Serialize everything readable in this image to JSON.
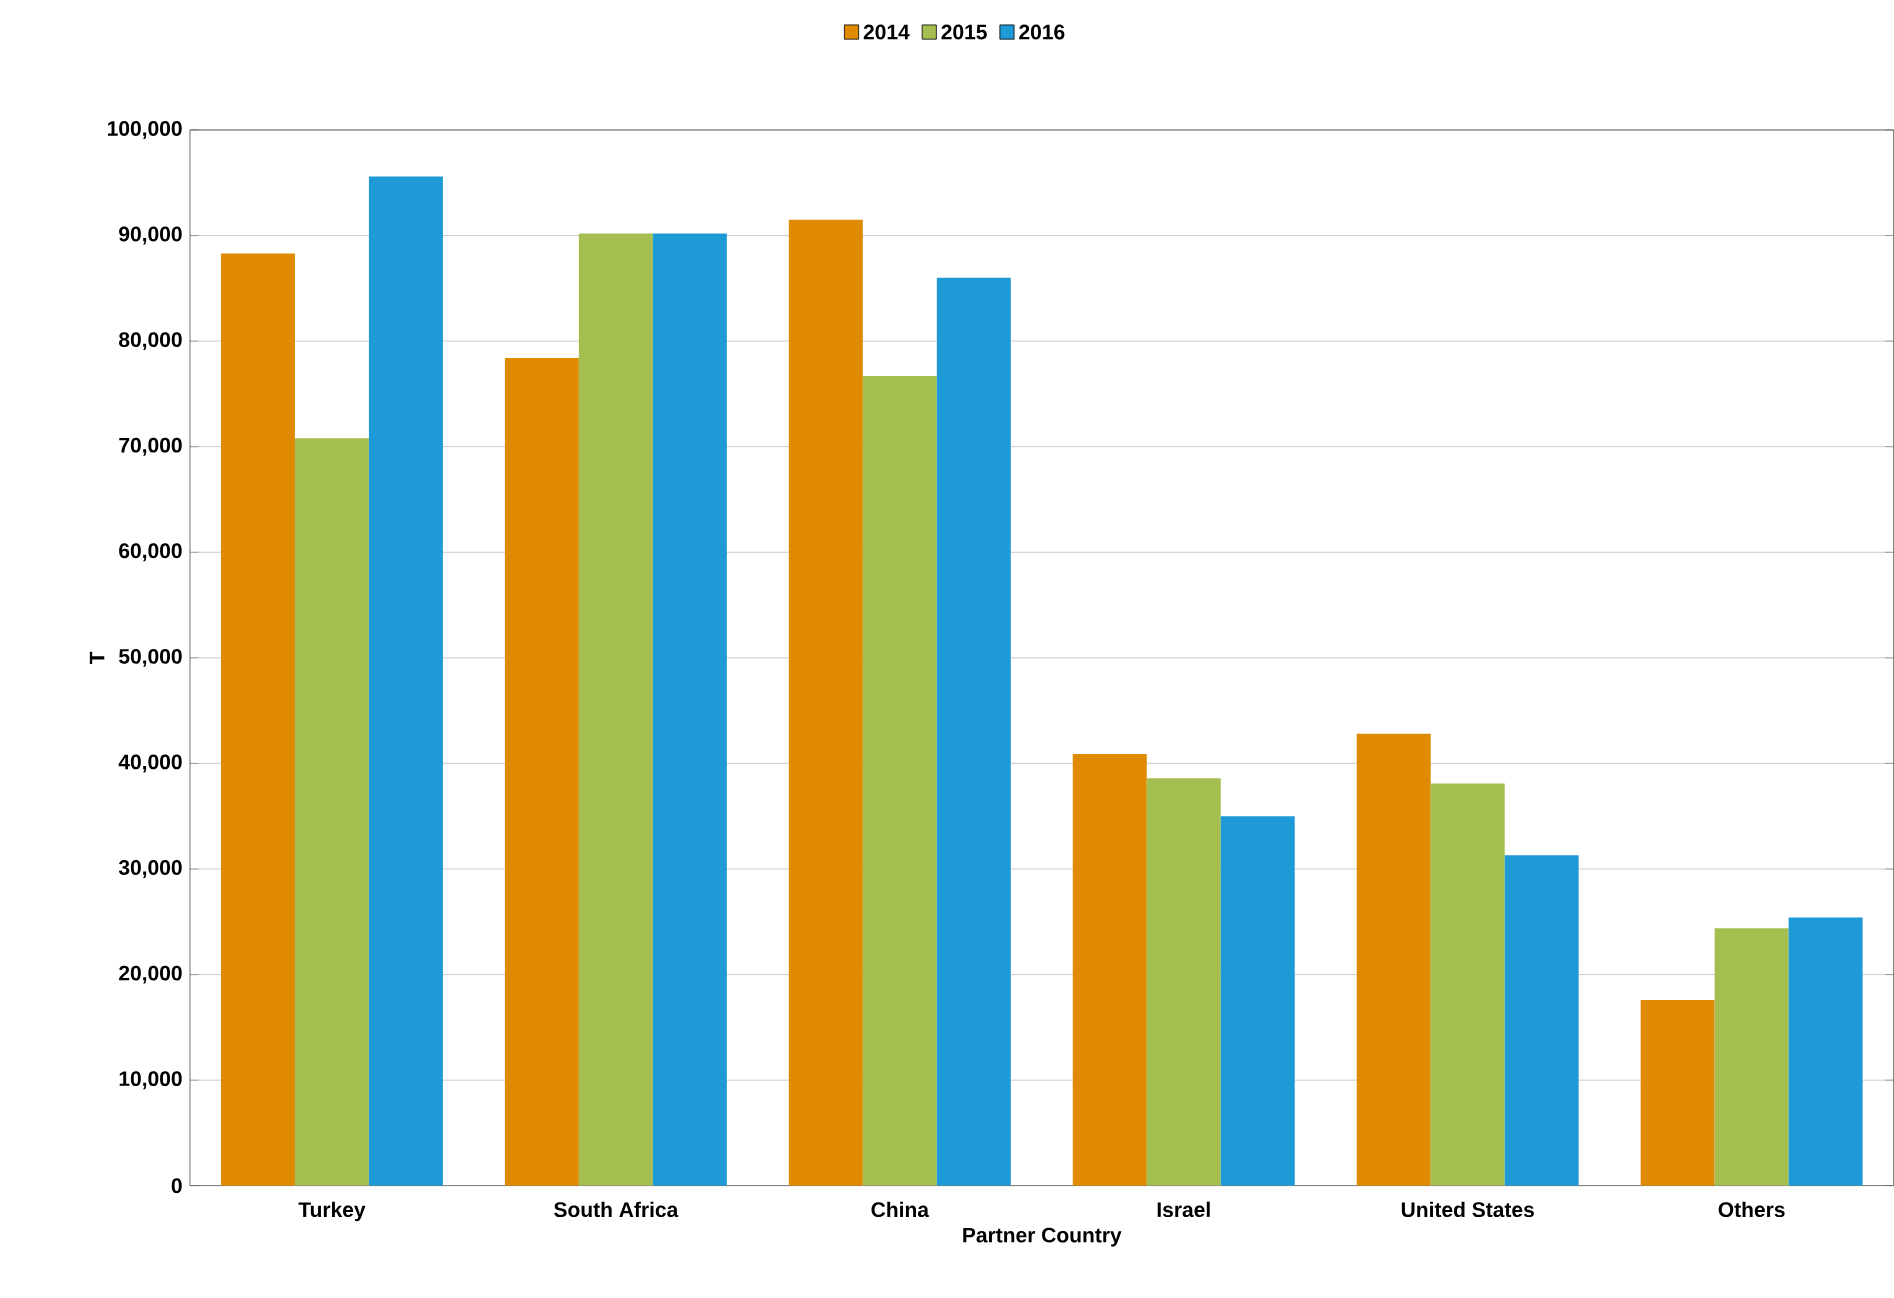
{
  "chart_data": {
    "type": "bar",
    "xlabel": "Partner Country",
    "ylabel": "T",
    "categories": [
      "Turkey",
      "South Africa",
      "China",
      "Israel",
      "United States",
      "Others"
    ],
    "series": [
      {
        "name": "2014",
        "color": "#e08a00",
        "values": [
          88300,
          78400,
          91500,
          40900,
          42800,
          17600
        ]
      },
      {
        "name": "2015",
        "color": "#a5be50",
        "values": [
          70800,
          90200,
          76700,
          38600,
          38100,
          24400
        ]
      },
      {
        "name": "2016",
        "color": "#1e9ad6",
        "values": [
          95600,
          90200,
          86000,
          35000,
          31300,
          25400
        ]
      }
    ],
    "ylim": [
      0,
      100000
    ],
    "yticks": [
      0,
      {
        "value": 10000,
        "label": "10,000"
      },
      {
        "value": 20000,
        "label": "20,000"
      },
      {
        "value": 30000,
        "label": "30,000"
      },
      {
        "value": 40000,
        "label": "40,000"
      },
      {
        "value": 50000,
        "label": "50,000"
      },
      {
        "value": 60000,
        "label": "60,000"
      },
      {
        "value": 70000,
        "label": "70,000"
      },
      {
        "value": 80000,
        "label": "80,000"
      },
      {
        "value": 90000,
        "label": "90,000"
      },
      {
        "value": 100000,
        "label": "100,000"
      }
    ],
    "grid": "y",
    "legend": "top"
  }
}
